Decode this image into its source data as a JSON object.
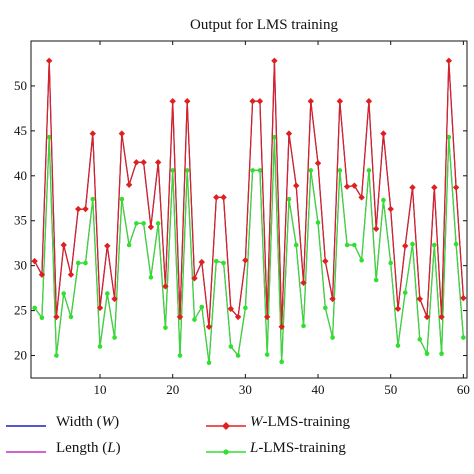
{
  "chart_data": {
    "type": "line",
    "title": "Output for LMS training",
    "xlabel": "",
    "ylabel": "",
    "xlim": [
      0.5,
      60.5
    ],
    "ylim": [
      17.5,
      55
    ],
    "x_ticks": [
      10,
      20,
      30,
      40,
      50,
      60
    ],
    "y_ticks": [
      20,
      25,
      30,
      35,
      40,
      45,
      50
    ],
    "grid": false,
    "legend_position": "bottom",
    "x": [
      1,
      2,
      3,
      4,
      5,
      6,
      7,
      8,
      9,
      10,
      11,
      12,
      13,
      14,
      15,
      16,
      17,
      18,
      19,
      20,
      21,
      22,
      23,
      24,
      25,
      26,
      27,
      28,
      29,
      30,
      31,
      32,
      33,
      34,
      35,
      36,
      37,
      38,
      39,
      40,
      41,
      42,
      43,
      44,
      45,
      46,
      47,
      48,
      49,
      50,
      51,
      52,
      53,
      54,
      55,
      56,
      57,
      58,
      59,
      60
    ],
    "series": [
      {
        "name": "Width (W)",
        "legend_parts": [
          "Width (",
          "W",
          ")"
        ],
        "color": "#1f1fbf",
        "marker": "none",
        "values": [
          30.5,
          29.0,
          52.8,
          24.3,
          32.3,
          29.0,
          36.3,
          36.3,
          44.7,
          25.3,
          32.2,
          26.3,
          44.7,
          39.0,
          41.5,
          41.5,
          34.3,
          41.5,
          27.7,
          48.3,
          24.3,
          48.3,
          28.6,
          30.4,
          23.2,
          37.6,
          37.6,
          25.2,
          24.3,
          30.6,
          48.3,
          48.3,
          24.3,
          52.8,
          23.2,
          44.7,
          38.9,
          28.1,
          48.3,
          41.4,
          30.5,
          26.3,
          48.3,
          38.8,
          38.9,
          37.6,
          48.3,
          34.1,
          44.7,
          36.3,
          25.2,
          32.2,
          38.7,
          26.3,
          24.3,
          38.7,
          24.3,
          52.8,
          38.7,
          26.4
        ]
      },
      {
        "name": "Length (L)",
        "legend_parts": [
          "Length (",
          "L",
          ")"
        ],
        "color": "#c030c0",
        "marker": "none",
        "values": [
          25.3,
          24.2,
          44.3,
          20.0,
          26.9,
          24.3,
          30.3,
          30.3,
          37.4,
          21.0,
          26.9,
          22.0,
          37.4,
          32.3,
          34.7,
          34.7,
          28.7,
          34.7,
          23.1,
          40.6,
          20.0,
          40.6,
          24.0,
          25.4,
          19.2,
          30.5,
          30.3,
          21.0,
          20.0,
          25.3,
          40.6,
          40.6,
          20.1,
          44.3,
          19.3,
          37.4,
          32.3,
          23.3,
          40.6,
          34.8,
          25.3,
          22.0,
          40.6,
          32.3,
          32.3,
          30.6,
          40.6,
          28.4,
          37.3,
          30.3,
          21.1,
          27.0,
          32.4,
          21.8,
          20.2,
          32.3,
          20.2,
          44.3,
          32.4,
          22.0
        ]
      },
      {
        "name": "W-LMS-training",
        "legend_parts": [
          "W",
          "-LMS-training"
        ],
        "color": "#e02020",
        "marker": "diamond",
        "values": [
          30.5,
          29.0,
          52.8,
          24.3,
          32.3,
          29.0,
          36.3,
          36.3,
          44.7,
          25.3,
          32.2,
          26.3,
          44.7,
          39.0,
          41.5,
          41.5,
          34.3,
          41.5,
          27.7,
          48.3,
          24.3,
          48.3,
          28.6,
          30.4,
          23.2,
          37.6,
          37.6,
          25.2,
          24.3,
          30.6,
          48.3,
          48.3,
          24.3,
          52.8,
          23.2,
          44.7,
          38.9,
          28.1,
          48.3,
          41.4,
          30.5,
          26.3,
          48.3,
          38.8,
          38.9,
          37.6,
          48.3,
          34.1,
          44.7,
          36.3,
          25.2,
          32.2,
          38.7,
          26.3,
          24.3,
          38.7,
          24.3,
          52.8,
          38.7,
          26.4
        ]
      },
      {
        "name": "L-LMS-training",
        "legend_parts": [
          "L",
          "-LMS-training"
        ],
        "color": "#30e030",
        "marker": "circle",
        "values": [
          25.3,
          24.2,
          44.3,
          20.0,
          26.9,
          24.3,
          30.3,
          30.3,
          37.4,
          21.0,
          26.9,
          22.0,
          37.4,
          32.3,
          34.7,
          34.7,
          28.7,
          34.7,
          23.1,
          40.6,
          20.0,
          40.6,
          24.0,
          25.4,
          19.2,
          30.5,
          30.3,
          21.0,
          20.0,
          25.3,
          40.6,
          40.6,
          20.1,
          44.3,
          19.3,
          37.4,
          32.3,
          23.3,
          40.6,
          34.8,
          25.3,
          22.0,
          40.6,
          32.3,
          32.3,
          30.6,
          40.6,
          28.4,
          37.3,
          30.3,
          21.1,
          27.0,
          32.4,
          21.8,
          20.2,
          32.3,
          20.2,
          44.3,
          32.4,
          22.0
        ]
      }
    ]
  }
}
